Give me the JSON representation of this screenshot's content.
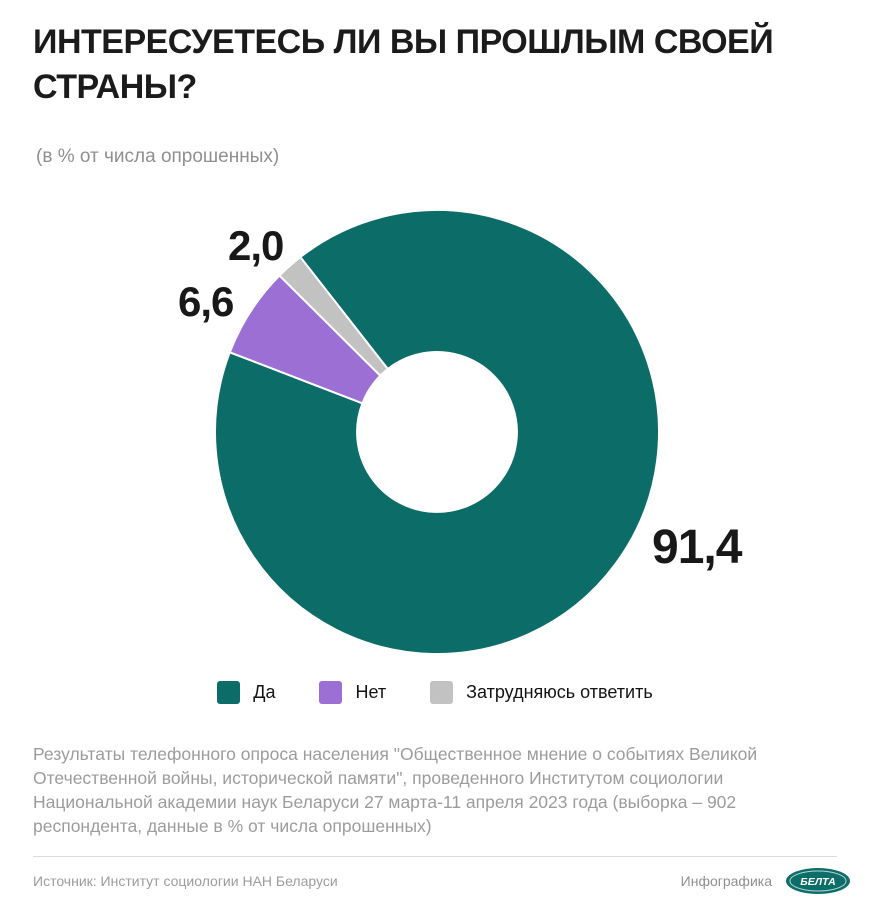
{
  "title": "ИНТЕРЕСУЕТЕСЬ ЛИ ВЫ ПРОШЛЫМ СВОЕЙ СТРАНЫ?",
  "subtitle": "(в % от числа опрошенных)",
  "chart_data": {
    "type": "pie",
    "donut": true,
    "categories": [
      "Да",
      "Нет",
      "Затрудняюсь ответить"
    ],
    "values": [
      91.4,
      6.6,
      2.0
    ],
    "value_labels": [
      "91,4",
      "6,6",
      "2,0"
    ],
    "colors": [
      "#0c6d68",
      "#9b6fd3",
      "#c2c2c2"
    ],
    "start_angle_cw_from_top": 322,
    "inner_radius_ratio": 0.36,
    "legend_position": "bottom",
    "title": "Интересуетесь ли вы прошлым своей страны?"
  },
  "legend": {
    "items": [
      {
        "label": "Да",
        "color": "#0c6d68"
      },
      {
        "label": "Нет",
        "color": "#9b6fd3"
      },
      {
        "label": "Затрудняюсь ответить",
        "color": "#c2c2c2"
      }
    ]
  },
  "footer": {
    "note": "Результаты телефонного опроса населения \"Общественное мнение о событиях Великой Отечественной войны, исторической памяти\", проведенного Институтом социологии Национальной академии наук Беларуси 27 марта-11 апреля 2023 года (выборка –  902 респондента, данные в % от числа опрошенных)"
  },
  "source": {
    "label": "Источник: Институт социологии НАН Беларуси",
    "credit": "Инфографика",
    "logo_text": "БЕЛТА",
    "logo_color": "#0d6e69"
  }
}
